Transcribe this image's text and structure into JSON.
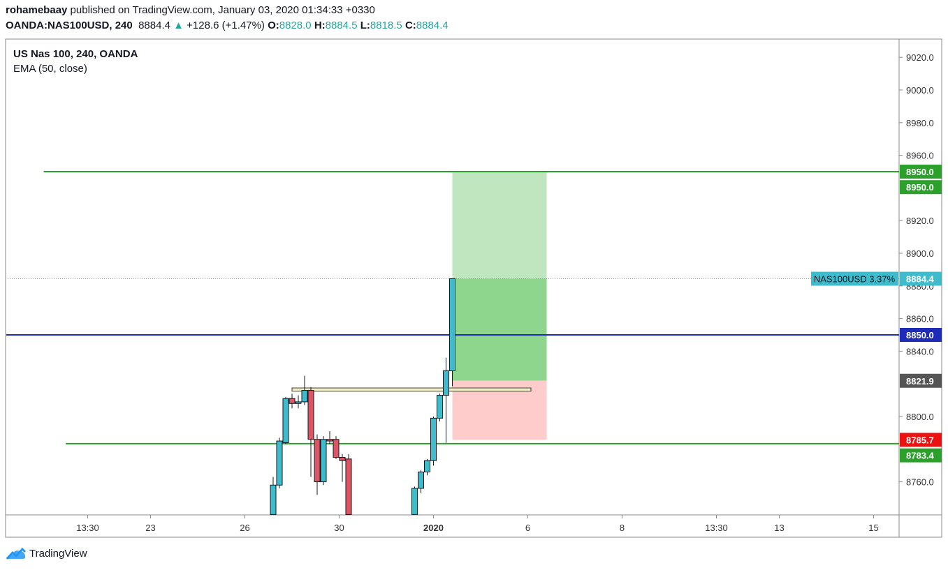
{
  "header": {
    "author": "rohamebaay",
    "published_text": "published on TradingView.com, January 03, 2020 01:34:33 +0330",
    "symbol": "OANDA:NAS100USD, 240",
    "last": "8884.4",
    "change": "+128.6 (+1.47%)",
    "open_label": "O:",
    "open": "8828.0",
    "high_label": "H:",
    "high": "8884.5",
    "low_label": "L:",
    "low": "8818.5",
    "close_label": "C:",
    "close": "8884.4"
  },
  "legend": {
    "title": "US Nas 100, 240, OANDA",
    "indicator": "EMA (50, close)"
  },
  "footer": {
    "brand": "TradingView"
  },
  "colors": {
    "up": "#3ebccc",
    "down": "#dd5463",
    "green_line": "#2ba02b",
    "blue_line": "#1d2bb8",
    "target_zone": "#bfe6bf",
    "profit_zone": "#8ed68e",
    "stop_zone": "#ffcccc",
    "price_tag": "#3ebccc",
    "current_tag": "#555555",
    "stop_tag": "#ee1111"
  },
  "chart_data": {
    "type": "candlestick",
    "y_axis": {
      "range": [
        8745,
        9030
      ],
      "ticks": [
        9020.0,
        9000.0,
        8980.0,
        8960.0,
        8920.0,
        8900.0,
        8880.0,
        8860.0,
        8840.0,
        8800.0,
        8760.0
      ]
    },
    "x_axis": {
      "ticks": [
        {
          "label": "13:30",
          "t": -7.5
        },
        {
          "label": "23",
          "t": -5.5
        },
        {
          "label": "26",
          "t": -2.5
        },
        {
          "label": "30",
          "t": 0.5
        },
        {
          "label": "2020",
          "t": 3.5,
          "bold": true
        },
        {
          "label": "6",
          "t": 6.5
        },
        {
          "label": "8",
          "t": 9.5
        },
        {
          "label": "13:30",
          "t": 12.5
        },
        {
          "label": "13",
          "t": 14.5
        },
        {
          "label": "15",
          "t": 17.5
        }
      ]
    },
    "candles": [
      {
        "t": -1.6,
        "o": 8740,
        "h": 8763,
        "l": 8738,
        "c": 8758
      },
      {
        "t": -1.4,
        "o": 8758,
        "h": 8787,
        "l": 8756,
        "c": 8785
      },
      {
        "t": -1.2,
        "o": 8784,
        "h": 8812,
        "l": 8783,
        "c": 8811
      },
      {
        "t": -1.0,
        "o": 8811,
        "h": 8814,
        "l": 8805,
        "c": 8808
      },
      {
        "t": -0.8,
        "o": 8808,
        "h": 8813,
        "l": 8805,
        "c": 8809
      },
      {
        "t": -0.6,
        "o": 8809,
        "h": 8825,
        "l": 8807,
        "c": 8816
      },
      {
        "t": -0.4,
        "o": 8816,
        "h": 8818,
        "l": 8763,
        "c": 8786
      },
      {
        "t": -0.2,
        "o": 8786,
        "h": 8789,
        "l": 8752,
        "c": 8760
      },
      {
        "t": 0.0,
        "o": 8760,
        "h": 8788,
        "l": 8758,
        "c": 8786
      },
      {
        "t": 0.2,
        "o": 8786,
        "h": 8791,
        "l": 8783,
        "c": 8785
      },
      {
        "t": 0.4,
        "o": 8786,
        "h": 8788,
        "l": 8774,
        "c": 8775
      },
      {
        "t": 0.6,
        "o": 8775,
        "h": 8777,
        "l": 8760,
        "c": 8773
      },
      {
        "t": 0.8,
        "o": 8774,
        "h": 8777,
        "l": 8735,
        "c": 8740
      },
      {
        "t": 2.9,
        "o": 8740,
        "h": 8757,
        "l": 8738,
        "c": 8756
      },
      {
        "t": 3.1,
        "o": 8756,
        "h": 8767,
        "l": 8753,
        "c": 8766
      },
      {
        "t": 3.3,
        "o": 8766,
        "h": 8774,
        "l": 8764,
        "c": 8773
      },
      {
        "t": 3.5,
        "o": 8773,
        "h": 8800,
        "l": 8770,
        "c": 8799
      },
      {
        "t": 3.7,
        "o": 8799,
        "h": 8814,
        "l": 8797,
        "c": 8813
      },
      {
        "t": 3.9,
        "o": 8813,
        "h": 8836,
        "l": 8784,
        "c": 8828
      },
      {
        "t": 4.1,
        "o": 8828,
        "h": 8884.5,
        "l": 8818.5,
        "c": 8884.4
      }
    ],
    "horizontal_lines": [
      {
        "price": 8950.0,
        "color": "#2ba02b",
        "from_t": -8.9
      },
      {
        "price": 8850.0,
        "color": "#1d2bb8",
        "from_t": -10.9
      },
      {
        "price": 8783.4,
        "color": "#2ba02b",
        "from_t": -8.2
      }
    ],
    "support_box": {
      "t_start": -1.0,
      "t_end": 6.6,
      "price_top": 8817.5,
      "price_bottom": 8815.5
    },
    "position": {
      "t_start": 4.1,
      "t_end": 7.1,
      "entry": 8821.9,
      "target": 8950.0,
      "stop": 8785.7,
      "current": 8884.4
    },
    "price_labels": [
      {
        "text": "8950.0",
        "price": 8950.0,
        "color": "#2ba02b"
      },
      {
        "text": "8950.0",
        "price": 8940.5,
        "color": "#2ba02b"
      },
      {
        "text": "8884.4",
        "price": 8884.4,
        "color": "#3ebccc"
      },
      {
        "text": "8850.0",
        "price": 8850.0,
        "color": "#1d2bb8"
      },
      {
        "text": "8821.9",
        "price": 8821.9,
        "color": "#555555"
      },
      {
        "text": "8785.7",
        "price": 8785.7,
        "color": "#ee1111"
      },
      {
        "text": "8783.4",
        "price": 8776.2,
        "color": "#2ba02b"
      }
    ],
    "symbol_tag": {
      "text": "NAS100USD 3.37%",
      "price": 8884.4
    }
  }
}
